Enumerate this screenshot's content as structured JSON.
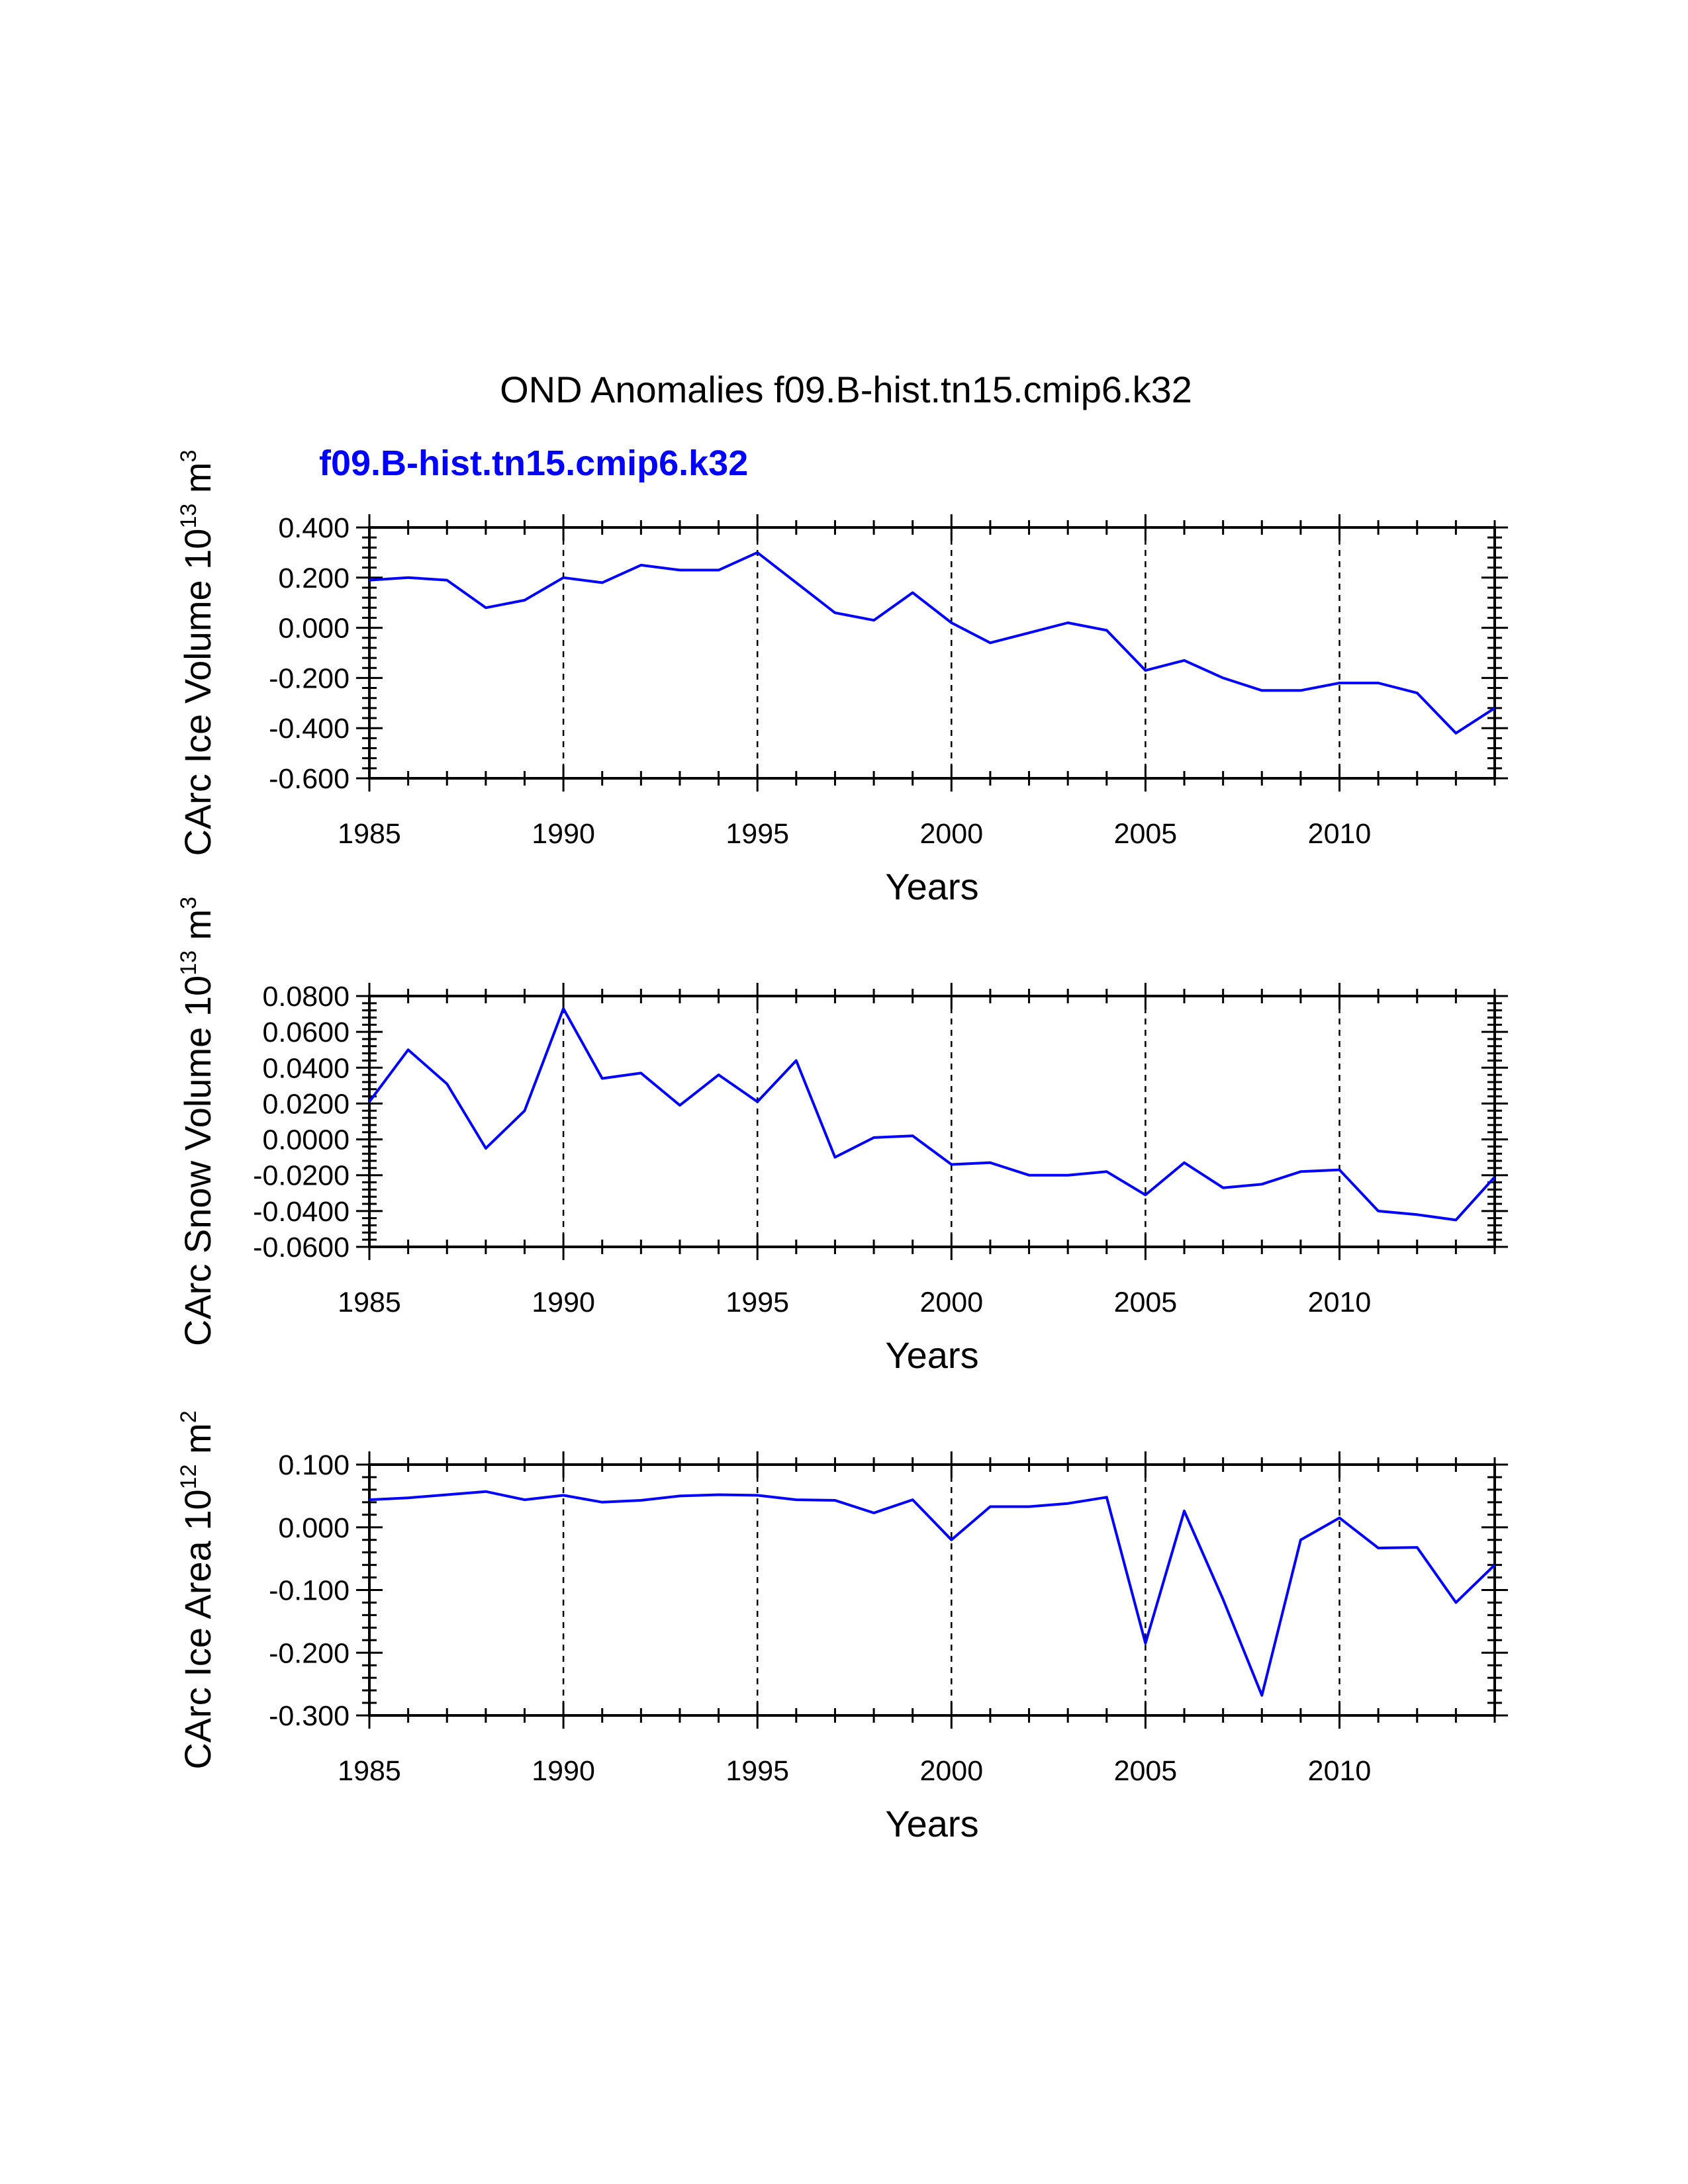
{
  "figure": {
    "title": "OND Anomalies f09.B-hist.tn15.cmip6.k32",
    "subtitle": "f09.B-hist.tn15.cmip6.k32",
    "line_color": "#0000ff"
  },
  "chart_data": [
    {
      "type": "line",
      "ylabel_main": "CArc Ice Volume 10",
      "ylabel_exp": "13",
      "ylabel_unit": "m",
      "ylabel_unit_exp": "3",
      "xlabel": "Years",
      "xlim": [
        1985,
        2014
      ],
      "ylim": [
        -0.6,
        0.4
      ],
      "y_ticks": [
        0.4,
        0.2,
        0.0,
        -0.2,
        -0.4,
        -0.6
      ],
      "y_tick_labels": [
        "0.400",
        "0.200",
        "0.000",
        "-0.200",
        "-0.400",
        "-0.600"
      ],
      "x_ticks": [
        1985,
        1990,
        1995,
        2000,
        2005,
        2010
      ],
      "x_tick_labels": [
        "1985",
        "1990",
        "1995",
        "2000",
        "2005",
        "2010"
      ],
      "series": [
        {
          "name": "f09.B-hist.tn15.cmip6.k32",
          "x": [
            1985,
            1986,
            1987,
            1988,
            1989,
            1990,
            1991,
            1992,
            1993,
            1994,
            1995,
            1996,
            1997,
            1998,
            1999,
            2000,
            2001,
            2002,
            2003,
            2004,
            2005,
            2006,
            2007,
            2008,
            2009,
            2010,
            2011,
            2012,
            2013,
            2014
          ],
          "values": [
            0.19,
            0.2,
            0.19,
            0.08,
            0.11,
            0.2,
            0.18,
            0.25,
            0.23,
            0.23,
            0.3,
            0.18,
            0.06,
            0.03,
            0.14,
            0.02,
            -0.06,
            -0.02,
            0.02,
            -0.01,
            -0.17,
            -0.13,
            -0.2,
            -0.25,
            -0.25,
            -0.22,
            -0.22,
            -0.26,
            -0.42,
            -0.32
          ]
        }
      ]
    },
    {
      "type": "line",
      "ylabel_main": "CArc Snow Volume 10",
      "ylabel_exp": "13",
      "ylabel_unit": "m",
      "ylabel_unit_exp": "3",
      "xlabel": "Years",
      "xlim": [
        1985,
        2014
      ],
      "ylim": [
        -0.06,
        0.08
      ],
      "y_ticks": [
        0.08,
        0.06,
        0.04,
        0.02,
        0.0,
        -0.02,
        -0.04,
        -0.06
      ],
      "y_tick_labels": [
        "0.0800",
        "0.0600",
        "0.0400",
        "0.0200",
        "0.0000",
        "-0.0200",
        "-0.0400",
        "-0.0600"
      ],
      "x_ticks": [
        1985,
        1990,
        1995,
        2000,
        2005,
        2010
      ],
      "x_tick_labels": [
        "1985",
        "1990",
        "1995",
        "2000",
        "2005",
        "2010"
      ],
      "series": [
        {
          "name": "f09.B-hist.tn15.cmip6.k32",
          "x": [
            1985,
            1986,
            1987,
            1988,
            1989,
            1990,
            1991,
            1992,
            1993,
            1994,
            1995,
            1996,
            1997,
            1998,
            1999,
            2000,
            2001,
            2002,
            2003,
            2004,
            2005,
            2006,
            2007,
            2008,
            2009,
            2010,
            2011,
            2012,
            2013,
            2014
          ],
          "values": [
            0.021,
            0.05,
            0.031,
            -0.005,
            0.016,
            0.073,
            0.034,
            0.037,
            0.019,
            0.036,
            0.021,
            0.044,
            -0.01,
            0.001,
            0.002,
            -0.014,
            -0.013,
            -0.02,
            -0.02,
            -0.018,
            -0.031,
            -0.013,
            -0.027,
            -0.025,
            -0.018,
            -0.017,
            -0.04,
            -0.042,
            -0.045,
            -0.021
          ]
        }
      ]
    },
    {
      "type": "line",
      "ylabel_main": "CArc Ice Area 10",
      "ylabel_exp": "12",
      "ylabel_unit": "m",
      "ylabel_unit_exp": "2",
      "xlabel": "Years",
      "xlim": [
        1985,
        2014
      ],
      "ylim": [
        -0.3,
        0.1
      ],
      "y_ticks": [
        0.1,
        0.0,
        -0.1,
        -0.2,
        -0.3
      ],
      "y_tick_labels": [
        "0.100",
        "0.000",
        "-0.100",
        "-0.200",
        "-0.300"
      ],
      "x_ticks": [
        1985,
        1990,
        1995,
        2000,
        2005,
        2010
      ],
      "x_tick_labels": [
        "1985",
        "1990",
        "1995",
        "2000",
        "2005",
        "2010"
      ],
      "series": [
        {
          "name": "f09.B-hist.tn15.cmip6.k32",
          "x": [
            1985,
            1986,
            1987,
            1988,
            1989,
            1990,
            1991,
            1992,
            1993,
            1994,
            1995,
            1996,
            1997,
            1998,
            1999,
            2000,
            2001,
            2002,
            2003,
            2004,
            2005,
            2006,
            2007,
            2008,
            2009,
            2010,
            2011,
            2012,
            2013,
            2014
          ],
          "values": [
            0.044,
            0.047,
            0.052,
            0.057,
            0.044,
            0.051,
            0.04,
            0.043,
            0.05,
            0.052,
            0.051,
            0.044,
            0.043,
            0.023,
            0.044,
            -0.02,
            0.033,
            0.033,
            0.038,
            0.048,
            -0.185,
            0.026,
            -0.115,
            -0.268,
            -0.02,
            0.015,
            -0.033,
            -0.032,
            -0.12,
            -0.06
          ]
        }
      ]
    }
  ]
}
